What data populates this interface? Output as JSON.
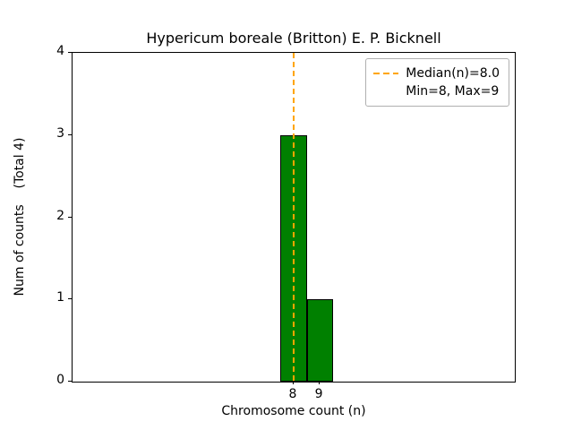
{
  "chart_data": {
    "type": "bar",
    "title": "Hypericum boreale (Britton) E. P. Bicknell",
    "xlabel": "Chromosome count (n)",
    "ylabel": "Num of counts    (Total 4)",
    "total_label": "(Total 4)",
    "categories": [
      8,
      9
    ],
    "values": [
      3,
      1
    ],
    "bar_width": 1,
    "xlim": [
      -0.5,
      16.5
    ],
    "ylim": [
      0,
      4
    ],
    "yticks": [
      0,
      1,
      2,
      3,
      4
    ],
    "xticks": [
      8,
      9
    ],
    "median_line": {
      "x": 8.0,
      "style": "dashed"
    },
    "legend": {
      "position": "upper right",
      "entries": [
        {
          "label": "Median(n)=8.0",
          "handle": "dashed-line"
        },
        {
          "label": "Min=8, Max=9",
          "handle": "none"
        }
      ]
    },
    "colors": {
      "bar_fill": "#008000",
      "bar_edge": "#000000",
      "median": "#ffa500",
      "axes_edge": "#000000",
      "legend_edge": "#b0b0b0",
      "background": "#ffffff"
    },
    "grid": false,
    "total": 4
  }
}
